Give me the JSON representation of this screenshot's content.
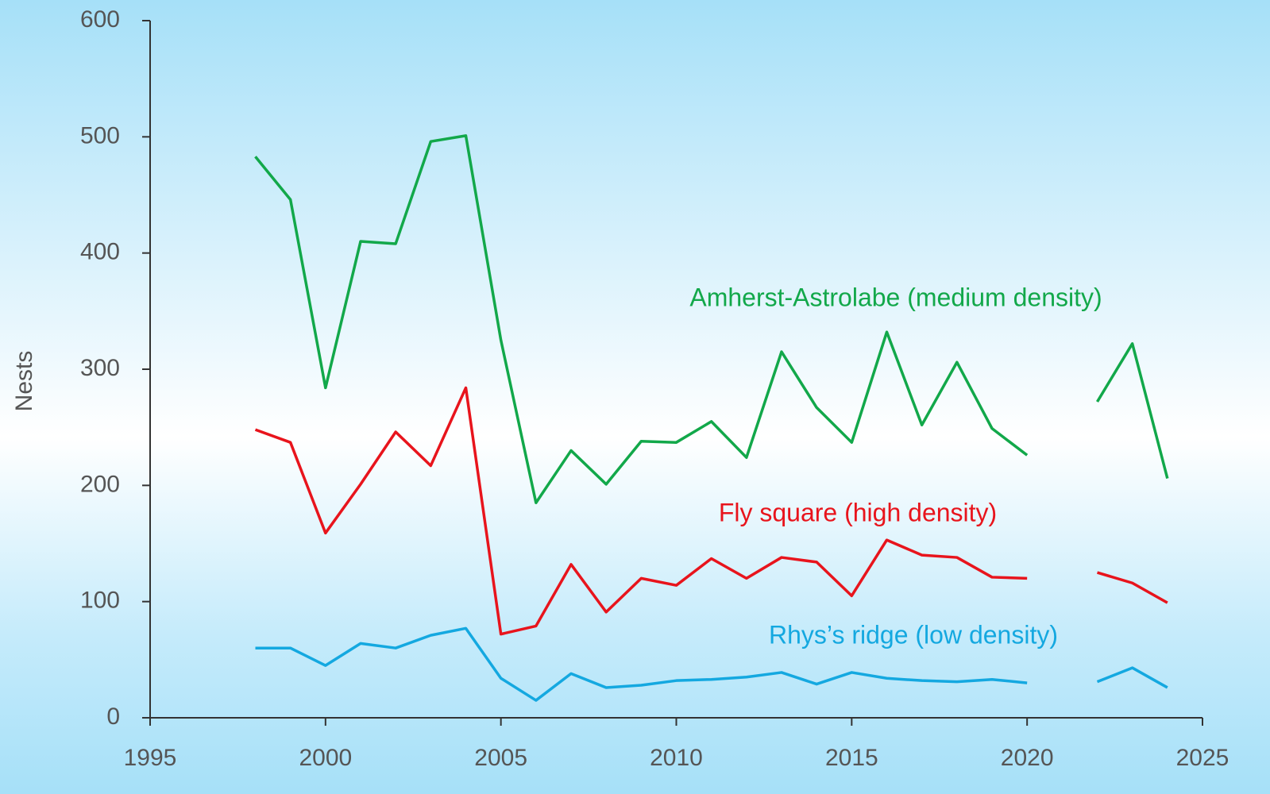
{
  "chart_data": {
    "type": "line",
    "y_label": "Nests",
    "x": [
      1998,
      1999,
      2000,
      2001,
      2002,
      2003,
      2004,
      2005,
      2006,
      2007,
      2008,
      2009,
      2010,
      2011,
      2012,
      2013,
      2014,
      2015,
      2016,
      2017,
      2018,
      2019,
      2020,
      2021,
      2022,
      2023,
      2024
    ],
    "series": [
      {
        "name": "Amherst-Astrolabe (medium density)",
        "color": "#12a84a",
        "values": [
          483,
          446,
          284,
          410,
          408,
          496,
          501,
          325,
          185,
          230,
          201,
          238,
          237,
          255,
          224,
          315,
          267,
          237,
          332,
          252,
          306,
          249,
          226,
          null,
          272,
          322,
          206
        ]
      },
      {
        "name": "Fly square (high density)",
        "color": "#e8141c",
        "values": [
          248,
          237,
          159,
          201,
          246,
          217,
          284,
          72,
          79,
          132,
          91,
          120,
          114,
          137,
          120,
          138,
          134,
          105,
          153,
          140,
          138,
          121,
          120,
          null,
          125,
          116,
          99
        ]
      },
      {
        "name": "Rhys’s ridge (low density)",
        "color": "#14a8e0",
        "values": [
          60,
          60,
          45,
          64,
          60,
          71,
          77,
          34,
          15,
          38,
          26,
          28,
          32,
          33,
          35,
          39,
          29,
          39,
          34,
          32,
          31,
          33,
          30,
          null,
          31,
          43,
          26
        ]
      }
    ],
    "xlim": [
      1995,
      2025
    ],
    "xticks": [
      1995,
      2000,
      2005,
      2010,
      2015,
      2020,
      2025
    ],
    "ylim": [
      0,
      600
    ],
    "yticks": [
      0,
      100,
      200,
      300,
      400,
      500,
      600
    ]
  }
}
